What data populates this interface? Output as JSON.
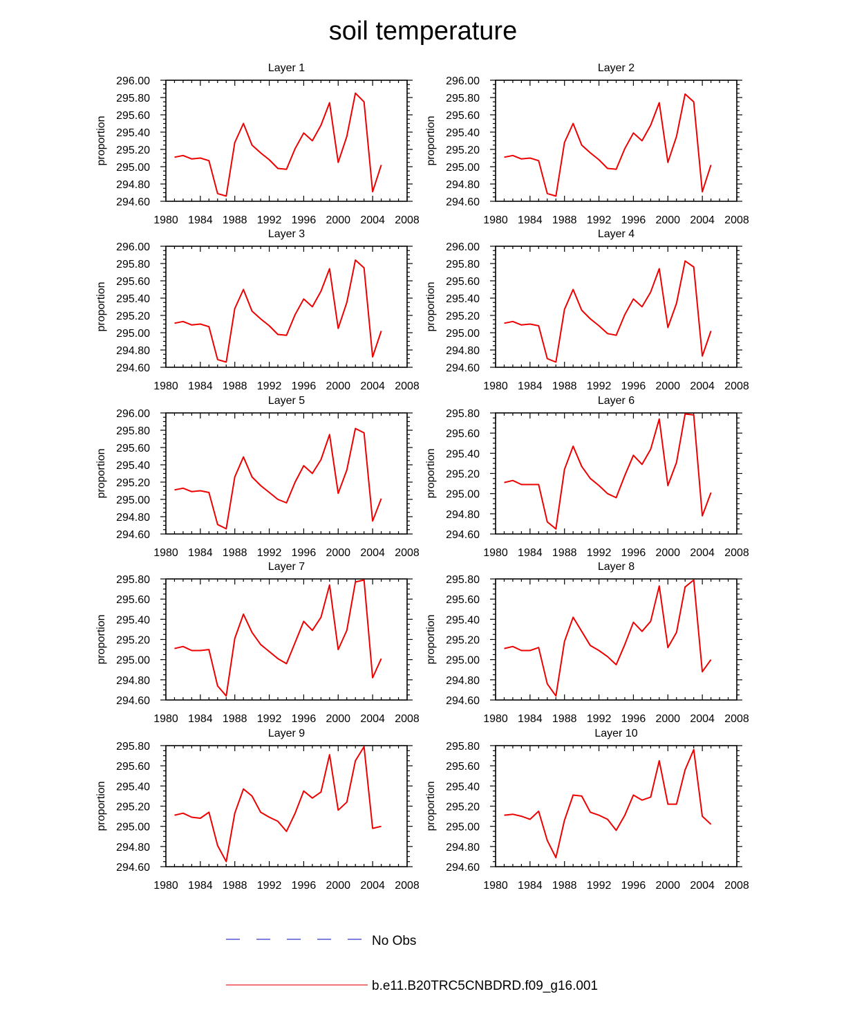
{
  "title": "soil temperature",
  "legend": [
    {
      "label": "No Obs",
      "color": "#3333cc",
      "dash": true
    },
    {
      "label": "b.e11.B20TRC5CNBDRD.f09_g16.001",
      "color": "#ee2222",
      "dash": false
    }
  ],
  "series_color": "#ee0000",
  "chart_data": [
    {
      "type": "line",
      "title": "Layer 1",
      "ylabel": "proportion",
      "xlim": [
        1980,
        2008
      ],
      "xticks": [
        "1980",
        "1984",
        "1988",
        "1992",
        "1996",
        "2000",
        "2004",
        "2008"
      ],
      "ylim": [
        294.6,
        296.0
      ],
      "yticks": [
        "294.60",
        "294.80",
        "295.00",
        "295.20",
        "295.40",
        "295.60",
        "295.80",
        "296.00"
      ],
      "series": [
        {
          "x": [
            1981,
            1982,
            1983,
            1984,
            1985,
            1986,
            1987,
            1988,
            1989,
            1990,
            1991,
            1992,
            1993,
            1994,
            1995,
            1996,
            1997,
            1998,
            1999,
            2000,
            2001,
            2002,
            2003,
            2004,
            2005
          ],
          "values": [
            295.11,
            295.13,
            295.09,
            295.1,
            295.07,
            294.69,
            294.66,
            295.28,
            295.5,
            295.25,
            295.16,
            295.08,
            294.98,
            294.97,
            295.21,
            295.39,
            295.3,
            295.48,
            295.74,
            295.05,
            295.35,
            295.85,
            295.75,
            294.71,
            295.02
          ]
        }
      ]
    },
    {
      "type": "line",
      "title": "Layer 2",
      "ylabel": "proportion",
      "xlim": [
        1980,
        2008
      ],
      "xticks": [
        "1980",
        "1984",
        "1988",
        "1992",
        "1996",
        "2000",
        "2004",
        "2008"
      ],
      "ylim": [
        294.6,
        296.0
      ],
      "yticks": [
        "294.60",
        "294.80",
        "295.00",
        "295.20",
        "295.40",
        "295.60",
        "295.80",
        "296.00"
      ],
      "series": [
        {
          "x": [
            1981,
            1982,
            1983,
            1984,
            1985,
            1986,
            1987,
            1988,
            1989,
            1990,
            1991,
            1992,
            1993,
            1994,
            1995,
            1996,
            1997,
            1998,
            1999,
            2000,
            2001,
            2002,
            2003,
            2004,
            2005
          ],
          "values": [
            295.11,
            295.13,
            295.09,
            295.1,
            295.07,
            294.69,
            294.66,
            295.28,
            295.5,
            295.25,
            295.16,
            295.08,
            294.98,
            294.97,
            295.21,
            295.39,
            295.3,
            295.48,
            295.74,
            295.05,
            295.35,
            295.84,
            295.75,
            294.71,
            295.02
          ]
        }
      ]
    },
    {
      "type": "line",
      "title": "Layer 3",
      "ylabel": "proportion",
      "xlim": [
        1980,
        2008
      ],
      "xticks": [
        "1980",
        "1984",
        "1988",
        "1992",
        "1996",
        "2000",
        "2004",
        "2008"
      ],
      "ylim": [
        294.6,
        296.0
      ],
      "yticks": [
        "294.60",
        "294.80",
        "295.00",
        "295.20",
        "295.40",
        "295.60",
        "295.80",
        "296.00"
      ],
      "series": [
        {
          "x": [
            1981,
            1982,
            1983,
            1984,
            1985,
            1986,
            1987,
            1988,
            1989,
            1990,
            1991,
            1992,
            1993,
            1994,
            1995,
            1996,
            1997,
            1998,
            1999,
            2000,
            2001,
            2002,
            2003,
            2004,
            2005
          ],
          "values": [
            295.11,
            295.13,
            295.09,
            295.1,
            295.07,
            294.69,
            294.66,
            295.28,
            295.5,
            295.25,
            295.16,
            295.08,
            294.98,
            294.97,
            295.21,
            295.39,
            295.3,
            295.48,
            295.74,
            295.05,
            295.35,
            295.84,
            295.75,
            294.72,
            295.02
          ]
        }
      ]
    },
    {
      "type": "line",
      "title": "Layer 4",
      "ylabel": "proportion",
      "xlim": [
        1980,
        2008
      ],
      "xticks": [
        "1980",
        "1984",
        "1988",
        "1992",
        "1996",
        "2000",
        "2004",
        "2008"
      ],
      "ylim": [
        294.6,
        296.0
      ],
      "yticks": [
        "294.60",
        "294.80",
        "295.00",
        "295.20",
        "295.40",
        "295.60",
        "295.80",
        "296.00"
      ],
      "series": [
        {
          "x": [
            1981,
            1982,
            1983,
            1984,
            1985,
            1986,
            1987,
            1988,
            1989,
            1990,
            1991,
            1992,
            1993,
            1994,
            1995,
            1996,
            1997,
            1998,
            1999,
            2000,
            2001,
            2002,
            2003,
            2004,
            2005
          ],
          "values": [
            295.11,
            295.13,
            295.09,
            295.1,
            295.08,
            294.7,
            294.66,
            295.27,
            295.5,
            295.26,
            295.16,
            295.08,
            294.99,
            294.97,
            295.21,
            295.39,
            295.3,
            295.47,
            295.74,
            295.06,
            295.34,
            295.83,
            295.76,
            294.73,
            295.02
          ]
        }
      ]
    },
    {
      "type": "line",
      "title": "Layer 5",
      "ylabel": "proportion",
      "xlim": [
        1980,
        2008
      ],
      "xticks": [
        "1980",
        "1984",
        "1988",
        "1992",
        "1996",
        "2000",
        "2004",
        "2008"
      ],
      "ylim": [
        294.6,
        296.0
      ],
      "yticks": [
        "294.60",
        "294.80",
        "295.00",
        "295.20",
        "295.40",
        "295.60",
        "295.80",
        "296.00"
      ],
      "series": [
        {
          "x": [
            1981,
            1982,
            1983,
            1984,
            1985,
            1986,
            1987,
            1988,
            1989,
            1990,
            1991,
            1992,
            1993,
            1994,
            1995,
            1996,
            1997,
            1998,
            1999,
            2000,
            2001,
            2002,
            2003,
            2004,
            2005
          ],
          "values": [
            295.11,
            295.13,
            295.09,
            295.1,
            295.08,
            294.71,
            294.66,
            295.26,
            295.49,
            295.26,
            295.16,
            295.08,
            295.0,
            294.96,
            295.2,
            295.39,
            295.3,
            295.46,
            295.75,
            295.07,
            295.34,
            295.82,
            295.77,
            294.75,
            295.01
          ]
        }
      ]
    },
    {
      "type": "line",
      "title": "Layer 6",
      "ylabel": "proportion",
      "xlim": [
        1980,
        2008
      ],
      "xticks": [
        "1980",
        "1984",
        "1988",
        "1992",
        "1996",
        "2000",
        "2004",
        "2008"
      ],
      "ylim": [
        294.6,
        295.8
      ],
      "yticks": [
        "294.60",
        "294.80",
        "295.00",
        "295.20",
        "295.40",
        "295.60",
        "295.80"
      ],
      "series": [
        {
          "x": [
            1981,
            1982,
            1983,
            1984,
            1985,
            1986,
            1987,
            1988,
            1989,
            1990,
            1991,
            1992,
            1993,
            1994,
            1995,
            1996,
            1997,
            1998,
            1999,
            2000,
            2001,
            2002,
            2003,
            2004,
            2005
          ],
          "values": [
            295.11,
            295.13,
            295.09,
            295.09,
            295.09,
            294.72,
            294.65,
            295.24,
            295.47,
            295.27,
            295.15,
            295.08,
            295.0,
            294.96,
            295.18,
            295.38,
            295.29,
            295.44,
            295.74,
            295.08,
            295.31,
            295.79,
            295.78,
            294.78,
            295.01
          ]
        }
      ]
    },
    {
      "type": "line",
      "title": "Layer 7",
      "ylabel": "proportion",
      "xlim": [
        1980,
        2008
      ],
      "xticks": [
        "1980",
        "1984",
        "1988",
        "1992",
        "1996",
        "2000",
        "2004",
        "2008"
      ],
      "ylim": [
        294.6,
        295.8
      ],
      "yticks": [
        "294.60",
        "294.80",
        "295.00",
        "295.20",
        "295.40",
        "295.60",
        "295.80"
      ],
      "series": [
        {
          "x": [
            1981,
            1982,
            1983,
            1984,
            1985,
            1986,
            1987,
            1988,
            1989,
            1990,
            1991,
            1992,
            1993,
            1994,
            1995,
            1996,
            1997,
            1998,
            1999,
            2000,
            2001,
            2002,
            2003,
            2004,
            2005
          ],
          "values": [
            295.11,
            295.13,
            295.09,
            295.09,
            295.1,
            294.74,
            294.64,
            295.21,
            295.45,
            295.27,
            295.15,
            295.08,
            295.01,
            294.96,
            295.17,
            295.38,
            295.29,
            295.42,
            295.74,
            295.1,
            295.29,
            295.77,
            295.79,
            294.82,
            295.01
          ]
        }
      ]
    },
    {
      "type": "line",
      "title": "Layer 8",
      "ylabel": "proportion",
      "xlim": [
        1980,
        2008
      ],
      "xticks": [
        "1980",
        "1984",
        "1988",
        "1992",
        "1996",
        "2000",
        "2004",
        "2008"
      ],
      "ylim": [
        294.6,
        295.8
      ],
      "yticks": [
        "294.60",
        "294.80",
        "295.00",
        "295.20",
        "295.40",
        "295.60",
        "295.80"
      ],
      "series": [
        {
          "x": [
            1981,
            1982,
            1983,
            1984,
            1985,
            1986,
            1987,
            1988,
            1989,
            1990,
            1991,
            1992,
            1993,
            1994,
            1995,
            1996,
            1997,
            1998,
            1999,
            2000,
            2001,
            2002,
            2003,
            2004,
            2005
          ],
          "values": [
            295.11,
            295.13,
            295.09,
            295.09,
            295.12,
            294.76,
            294.64,
            295.18,
            295.42,
            295.28,
            295.14,
            295.09,
            295.03,
            294.95,
            295.15,
            295.37,
            295.28,
            295.38,
            295.73,
            295.12,
            295.27,
            295.72,
            295.79,
            294.88,
            295.0
          ]
        }
      ]
    },
    {
      "type": "line",
      "title": "Layer 9",
      "ylabel": "proportion",
      "xlim": [
        1980,
        2008
      ],
      "xticks": [
        "1980",
        "1984",
        "1988",
        "1992",
        "1996",
        "2000",
        "2004",
        "2008"
      ],
      "ylim": [
        294.6,
        295.8
      ],
      "yticks": [
        "294.60",
        "294.80",
        "295.00",
        "295.20",
        "295.40",
        "295.60",
        "295.80"
      ],
      "series": [
        {
          "x": [
            1981,
            1982,
            1983,
            1984,
            1985,
            1986,
            1987,
            1988,
            1989,
            1990,
            1991,
            1992,
            1993,
            1994,
            1995,
            1996,
            1997,
            1998,
            1999,
            2000,
            2001,
            2002,
            2003,
            2004,
            2005
          ],
          "values": [
            295.11,
            295.13,
            295.09,
            295.08,
            295.14,
            294.81,
            294.65,
            295.13,
            295.37,
            295.3,
            295.14,
            295.09,
            295.05,
            294.95,
            295.13,
            295.35,
            295.28,
            295.34,
            295.71,
            295.16,
            295.24,
            295.65,
            295.79,
            294.98,
            295.0
          ]
        }
      ]
    },
    {
      "type": "line",
      "title": "Layer 10",
      "ylabel": "proportion",
      "xlim": [
        1980,
        2008
      ],
      "xticks": [
        "1980",
        "1984",
        "1988",
        "1992",
        "1996",
        "2000",
        "2004",
        "2008"
      ],
      "ylim": [
        294.6,
        295.8
      ],
      "yticks": [
        "294.60",
        "294.80",
        "295.00",
        "295.20",
        "295.40",
        "295.60",
        "295.80"
      ],
      "series": [
        {
          "x": [
            1981,
            1982,
            1983,
            1984,
            1985,
            1986,
            1987,
            1988,
            1989,
            1990,
            1991,
            1992,
            1993,
            1994,
            1995,
            1996,
            1997,
            1998,
            1999,
            2000,
            2001,
            2002,
            2003,
            2004,
            2005
          ],
          "values": [
            295.11,
            295.12,
            295.1,
            295.07,
            295.15,
            294.86,
            294.69,
            295.06,
            295.31,
            295.3,
            295.14,
            295.11,
            295.07,
            294.96,
            295.11,
            295.31,
            295.26,
            295.29,
            295.65,
            295.22,
            295.22,
            295.56,
            295.76,
            295.1,
            295.02
          ]
        }
      ]
    }
  ]
}
